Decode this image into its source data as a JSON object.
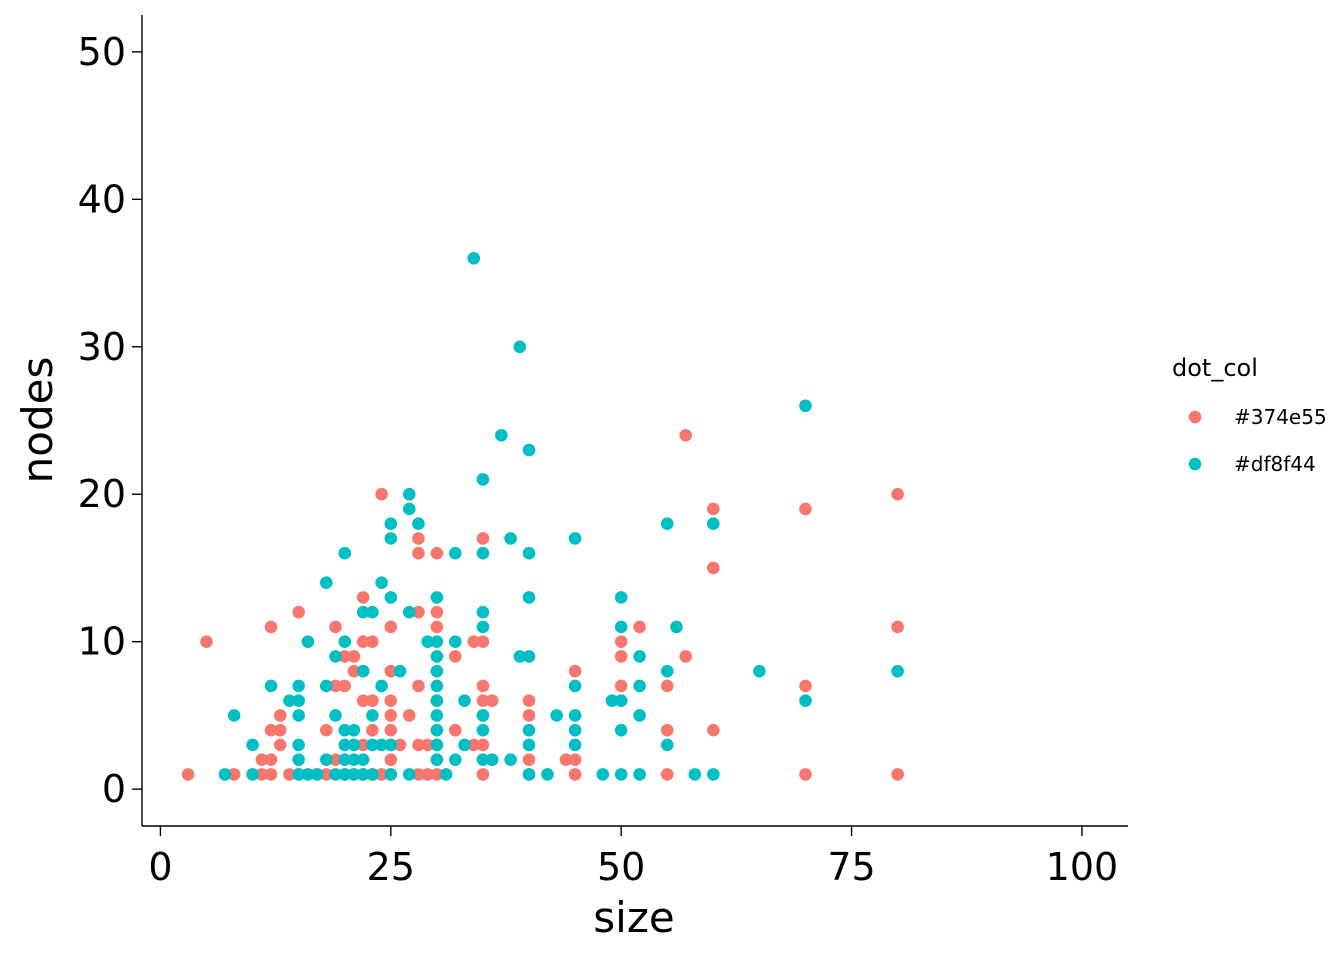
{
  "chart_data": {
    "type": "scatter",
    "title": "",
    "xlabel": "size",
    "ylabel": "nodes",
    "xlim": [
      -2,
      105
    ],
    "ylim": [
      -2.5,
      52.5
    ],
    "x_ticks": [
      0,
      25,
      50,
      75,
      100
    ],
    "y_ticks": [
      0,
      10,
      20,
      30,
      40,
      50
    ],
    "grid": false,
    "legend": {
      "title": "dot_col",
      "position": "right"
    },
    "series": [
      {
        "name": "#374e55",
        "color": "#F8766D",
        "points": [
          [
            3,
            1
          ],
          [
            5,
            10
          ],
          [
            8,
            1
          ],
          [
            11,
            1
          ],
          [
            11,
            2
          ],
          [
            12,
            11
          ],
          [
            12,
            4
          ],
          [
            12,
            2
          ],
          [
            12,
            1
          ],
          [
            13,
            5
          ],
          [
            13,
            4
          ],
          [
            13,
            3
          ],
          [
            14,
            1
          ],
          [
            15,
            12
          ],
          [
            15,
            1
          ],
          [
            17,
            1
          ],
          [
            18,
            4
          ],
          [
            18,
            1
          ],
          [
            19,
            11
          ],
          [
            19,
            7
          ],
          [
            19,
            2
          ],
          [
            20,
            9
          ],
          [
            20,
            7
          ],
          [
            20,
            1
          ],
          [
            21,
            9
          ],
          [
            21,
            8
          ],
          [
            21,
            1
          ],
          [
            22,
            13
          ],
          [
            22,
            10
          ],
          [
            22,
            8
          ],
          [
            22,
            6
          ],
          [
            22,
            3
          ],
          [
            22,
            1
          ],
          [
            23,
            10
          ],
          [
            23,
            6
          ],
          [
            23,
            4
          ],
          [
            23,
            1
          ],
          [
            24,
            20
          ],
          [
            24,
            1
          ],
          [
            25,
            11
          ],
          [
            25,
            8
          ],
          [
            25,
            6
          ],
          [
            25,
            5
          ],
          [
            25,
            4
          ],
          [
            25,
            3
          ],
          [
            25,
            2
          ],
          [
            25,
            1
          ],
          [
            26,
            3
          ],
          [
            27,
            5
          ],
          [
            28,
            17
          ],
          [
            28,
            16
          ],
          [
            28,
            12
          ],
          [
            28,
            7
          ],
          [
            28,
            3
          ],
          [
            28,
            1
          ],
          [
            29,
            3
          ],
          [
            29,
            1
          ],
          [
            30,
            16
          ],
          [
            30,
            12
          ],
          [
            30,
            11
          ],
          [
            30,
            6
          ],
          [
            30,
            4
          ],
          [
            30,
            3
          ],
          [
            30,
            2
          ],
          [
            30,
            1
          ],
          [
            32,
            9
          ],
          [
            32,
            4
          ],
          [
            34,
            10
          ],
          [
            34,
            3
          ],
          [
            35,
            17
          ],
          [
            35,
            10
          ],
          [
            35,
            7
          ],
          [
            35,
            6
          ],
          [
            35,
            5
          ],
          [
            35,
            3
          ],
          [
            35,
            1
          ],
          [
            36,
            6
          ],
          [
            40,
            6
          ],
          [
            40,
            5
          ],
          [
            40,
            2
          ],
          [
            40,
            1
          ],
          [
            44,
            2
          ],
          [
            45,
            8
          ],
          [
            45,
            2
          ],
          [
            45,
            1
          ],
          [
            50,
            10
          ],
          [
            50,
            9
          ],
          [
            50,
            7
          ],
          [
            50,
            6
          ],
          [
            52,
            11
          ],
          [
            55,
            7
          ],
          [
            55,
            4
          ],
          [
            55,
            1
          ],
          [
            57,
            24
          ],
          [
            57,
            9
          ],
          [
            60,
            19
          ],
          [
            60,
            15
          ],
          [
            60,
            4
          ],
          [
            70,
            19
          ],
          [
            70,
            7
          ],
          [
            70,
            1
          ],
          [
            80,
            20
          ],
          [
            80,
            11
          ],
          [
            80,
            1
          ]
        ]
      },
      {
        "name": "#df8f44",
        "color": "#00BFC4",
        "points": [
          [
            7,
            1
          ],
          [
            8,
            5
          ],
          [
            10,
            3
          ],
          [
            10,
            1
          ],
          [
            12,
            7
          ],
          [
            14,
            6
          ],
          [
            15,
            7
          ],
          [
            15,
            6
          ],
          [
            15,
            5
          ],
          [
            15,
            3
          ],
          [
            15,
            2
          ],
          [
            15,
            1
          ],
          [
            16,
            10
          ],
          [
            16,
            1
          ],
          [
            17,
            1
          ],
          [
            18,
            14
          ],
          [
            18,
            7
          ],
          [
            18,
            2
          ],
          [
            19,
            9
          ],
          [
            19,
            5
          ],
          [
            19,
            1
          ],
          [
            20,
            16
          ],
          [
            20,
            10
          ],
          [
            20,
            4
          ],
          [
            20,
            3
          ],
          [
            20,
            2
          ],
          [
            20,
            1
          ],
          [
            21,
            4
          ],
          [
            21,
            3
          ],
          [
            21,
            2
          ],
          [
            21,
            1
          ],
          [
            22,
            12
          ],
          [
            22,
            8
          ],
          [
            22,
            2
          ],
          [
            22,
            1
          ],
          [
            23,
            12
          ],
          [
            23,
            5
          ],
          [
            23,
            3
          ],
          [
            23,
            1
          ],
          [
            24,
            14
          ],
          [
            24,
            7
          ],
          [
            24,
            3
          ],
          [
            25,
            18
          ],
          [
            25,
            17
          ],
          [
            25,
            13
          ],
          [
            25,
            3
          ],
          [
            25,
            1
          ],
          [
            26,
            8
          ],
          [
            27,
            20
          ],
          [
            27,
            19
          ],
          [
            27,
            12
          ],
          [
            27,
            1
          ],
          [
            28,
            18
          ],
          [
            29,
            10
          ],
          [
            30,
            13
          ],
          [
            30,
            10
          ],
          [
            30,
            9
          ],
          [
            30,
            8
          ],
          [
            30,
            7
          ],
          [
            30,
            6
          ],
          [
            30,
            5
          ],
          [
            30,
            4
          ],
          [
            30,
            3
          ],
          [
            30,
            2
          ],
          [
            31,
            1
          ],
          [
            32,
            16
          ],
          [
            32,
            10
          ],
          [
            32,
            2
          ],
          [
            33,
            6
          ],
          [
            33,
            3
          ],
          [
            34,
            36
          ],
          [
            35,
            21
          ],
          [
            35,
            16
          ],
          [
            35,
            12
          ],
          [
            35,
            11
          ],
          [
            35,
            5
          ],
          [
            35,
            4
          ],
          [
            35,
            2
          ],
          [
            36,
            2
          ],
          [
            37,
            24
          ],
          [
            38,
            17
          ],
          [
            38,
            2
          ],
          [
            39,
            30
          ],
          [
            39,
            9
          ],
          [
            40,
            23
          ],
          [
            40,
            16
          ],
          [
            40,
            13
          ],
          [
            40,
            9
          ],
          [
            40,
            4
          ],
          [
            40,
            3
          ],
          [
            40,
            1
          ],
          [
            42,
            1
          ],
          [
            43,
            5
          ],
          [
            45,
            17
          ],
          [
            45,
            7
          ],
          [
            45,
            5
          ],
          [
            45,
            4
          ],
          [
            45,
            3
          ],
          [
            48,
            1
          ],
          [
            49,
            6
          ],
          [
            50,
            13
          ],
          [
            50,
            11
          ],
          [
            50,
            6
          ],
          [
            50,
            4
          ],
          [
            50,
            1
          ],
          [
            52,
            9
          ],
          [
            52,
            7
          ],
          [
            52,
            5
          ],
          [
            52,
            1
          ],
          [
            55,
            18
          ],
          [
            55,
            8
          ],
          [
            55,
            3
          ],
          [
            56,
            11
          ],
          [
            58,
            1
          ],
          [
            60,
            18
          ],
          [
            60,
            1
          ],
          [
            65,
            8
          ],
          [
            70,
            26
          ],
          [
            70,
            6
          ],
          [
            80,
            8
          ]
        ]
      }
    ]
  }
}
